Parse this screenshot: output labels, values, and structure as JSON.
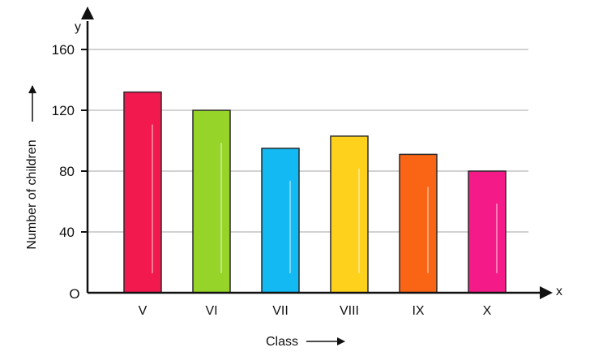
{
  "chart_data": {
    "type": "bar",
    "title": "",
    "xlabel": "Class",
    "ylabel": "Number of children",
    "x_axis_letter": "x",
    "y_axis_letter": "y",
    "origin_label": "O",
    "categories": [
      "V",
      "VI",
      "VII",
      "VIII",
      "IX",
      "X"
    ],
    "values": [
      132,
      120,
      95,
      103,
      91,
      80
    ],
    "colors": [
      "#f2194f",
      "#96d42a",
      "#13b9f2",
      "#fdd11c",
      "#f96415",
      "#f41b88"
    ],
    "ylim": [
      0,
      160
    ],
    "yticks": [
      40,
      80,
      120,
      160
    ],
    "grid": true,
    "legend": "none"
  }
}
